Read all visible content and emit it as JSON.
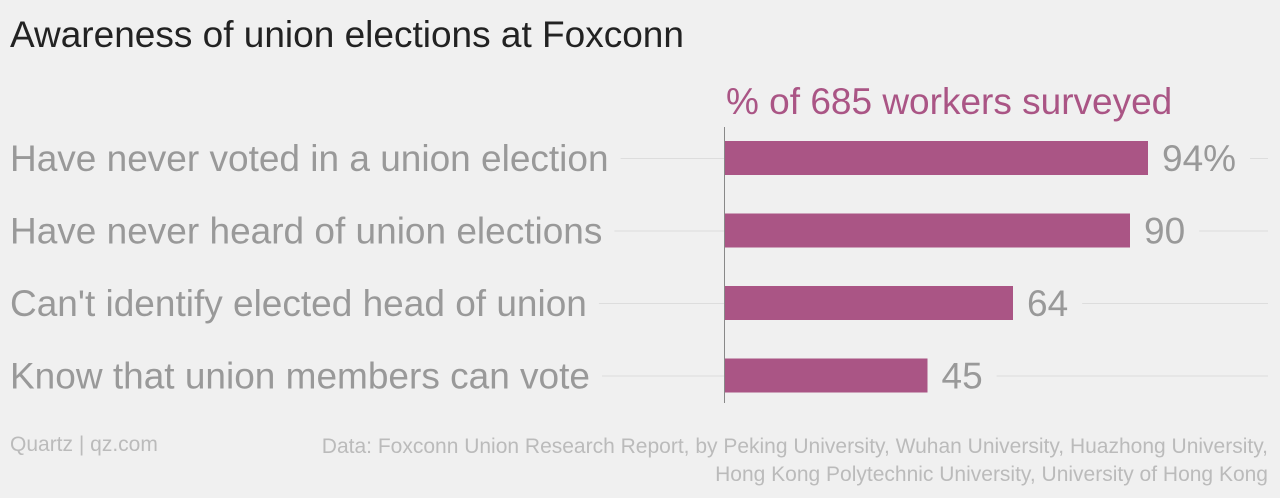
{
  "chart_data": {
    "type": "bar",
    "orientation": "horizontal",
    "title": "Awareness of union elections at Foxconn",
    "series_label": "% of 685 workers surveyed",
    "categories": [
      "Have never voted in a union election",
      "Have never heard of union elections",
      "Can't identify elected head of union",
      "Know that union members can vote"
    ],
    "values": [
      94,
      90,
      64,
      45
    ],
    "value_labels": [
      "94%",
      "90",
      "64",
      "45"
    ],
    "xlim": [
      0,
      100
    ],
    "grid": true,
    "bar_color": "#aa5585"
  },
  "footer": {
    "source_left": "Quartz | qz.com",
    "source_right": "Data: Foxconn Union Research Report, by Peking University, Wuhan University, Huazhong University, Hong Kong Polytechnic University, University of Hong Kong"
  }
}
